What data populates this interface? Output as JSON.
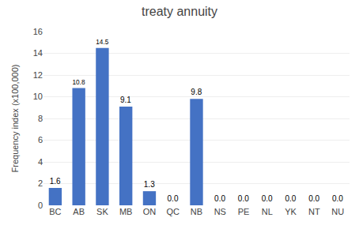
{
  "chart_data": {
    "type": "bar",
    "title": "treaty annuity",
    "ylabel": "Frequency index (x100,000)",
    "categories": [
      "BC",
      "AB",
      "SK",
      "MB",
      "ON",
      "QC",
      "NB",
      "NS",
      "PE",
      "NL",
      "YK",
      "NT",
      "NU"
    ],
    "values": [
      1.6,
      10.8,
      14.5,
      9.1,
      1.3,
      0.0,
      9.8,
      0.0,
      0.0,
      0.0,
      0.0,
      0.0,
      0.0
    ],
    "value_labels": [
      "1.6",
      "10.8",
      "14.5",
      "9.1",
      "1.3",
      "0.0",
      "9.8",
      "0.0",
      "0.0",
      "0.0",
      "0.0",
      "0.0",
      "0.0"
    ],
    "color": "#4472C4",
    "ylim": [
      0,
      16
    ],
    "yticks": [
      0,
      2,
      4,
      6,
      8,
      10,
      12,
      14,
      16
    ],
    "grid": true,
    "data_labels": true
  }
}
